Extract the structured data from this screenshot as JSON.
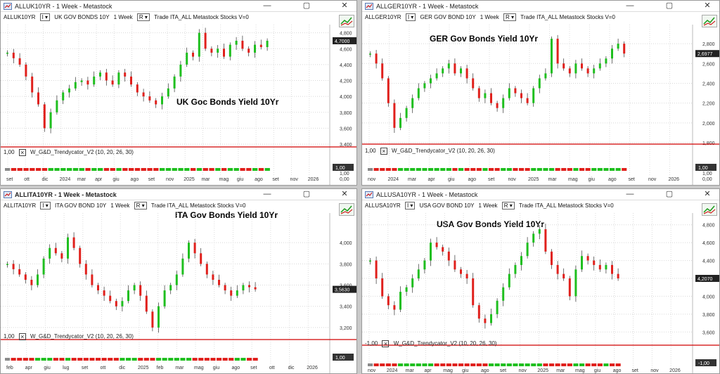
{
  "windows": [
    {
      "id": "uk",
      "title": "ALLUK10YR - 1 Week - Metastock",
      "active": false,
      "symbol": "ALLUK10YR",
      "name": "UK GOV BONDS 10Y",
      "period": "1 Week",
      "r": "R",
      "info": "Trade  ITA_ALL  Metastock  Stocks  V=0",
      "annotation": "UK Goc Bonds Yield 10Yr",
      "price_label": "4,7000",
      "y_ticks": [
        "4,800",
        "4,600",
        "4,400",
        "4,200",
        "4,000",
        "3,800",
        "3,600",
        "3,400"
      ],
      "indicator_name": "W_G&D_Trendycator_V2  (10, 20, 26, 30)",
      "indicator_left": "1,00",
      "indicator_tag": "1,00",
      "indicator_ticks": [
        "1,00",
        "0,00"
      ],
      "x_labels": [
        "set",
        "ott",
        "dic",
        "2024",
        "mar",
        "apr",
        "giu",
        "ago",
        "set",
        "nov",
        "2025",
        "mar",
        "mag",
        "giu",
        "ago",
        "set",
        "nov",
        "2026"
      ],
      "chart_data": {
        "type": "candlestick",
        "series": [
          {
            "values": [
              4.55,
              4.48,
              4.4,
              4.25,
              4.05,
              3.9,
              3.6,
              3.8,
              3.95,
              4.05,
              4.1,
              4.18,
              4.2,
              4.15,
              4.25,
              4.3,
              4.2,
              4.15,
              4.3,
              4.25,
              4.15,
              4.05,
              4.0,
              3.95,
              3.9,
              4.0,
              4.1,
              4.25,
              4.4,
              4.55,
              4.5,
              4.8,
              4.6,
              4.55,
              4.6,
              4.5,
              4.65,
              4.7,
              4.6,
              4.55,
              4.65,
              4.62,
              4.7
            ]
          }
        ],
        "ylim": [
          3.4,
          4.85
        ]
      }
    },
    {
      "id": "ger",
      "title": "ALLGER10YR - 1 Week - Metastock",
      "active": false,
      "symbol": "ALLGER10YR",
      "name": "GER GOV BOND 10Y",
      "period": "1 Week",
      "r": "R",
      "info": "Trade  ITA_ALL  Metastock  Stocks  V=0",
      "annotation": "GER Gov Bonds Yield 10Yr",
      "price_label": "2,6977",
      "y_ticks": [
        "2,800",
        "2,600",
        "2,400",
        "2,200",
        "2,000",
        "1,800"
      ],
      "indicator_name": "W_G&D_Trendycator_V2  (10, 20, 26, 30)",
      "indicator_left": "1,00",
      "indicator_tag": "1,00",
      "indicator_ticks": [
        "1,00",
        "0,00"
      ],
      "x_labels": [
        "nov",
        "2024",
        "mar",
        "apr",
        "giu",
        "ago",
        "set",
        "nov",
        "2025",
        "mar",
        "mag",
        "giu",
        "ago",
        "set",
        "nov",
        "2026"
      ],
      "chart_data": {
        "type": "candlestick",
        "series": [
          {
            "values": [
              2.7,
              2.6,
              2.45,
              2.2,
              1.95,
              2.05,
              2.15,
              2.25,
              2.35,
              2.4,
              2.45,
              2.5,
              2.55,
              2.6,
              2.5,
              2.55,
              2.45,
              2.35,
              2.25,
              2.3,
              2.2,
              2.15,
              2.25,
              2.35,
              2.3,
              2.25,
              2.2,
              2.35,
              2.45,
              2.5,
              2.85,
              2.6,
              2.55,
              2.5,
              2.6,
              2.55,
              2.5,
              2.55,
              2.6,
              2.65,
              2.75,
              2.8,
              2.7
            ]
          }
        ],
        "ylim": [
          1.8,
          2.95
        ]
      }
    },
    {
      "id": "ita",
      "title": "ALLITA10YR - 1 Week - Metastock",
      "active": true,
      "symbol": "ALLITA10YR",
      "name": "ITA GOV BOND 10Y",
      "period": "1 Week",
      "r": "R",
      "info": "Trade  ITA_ALL  Metastock  Stocks  V=0",
      "annotation": "ITA Gov Bonds Yield 10Yr",
      "price_label": "3,5630",
      "y_ticks": [
        "4,000",
        "3,800",
        "3,600",
        "3,400",
        "3,200"
      ],
      "indicator_name": "W_G&D_Trendycator_V2  (10, 20, 26, 30)",
      "indicator_left": "1,00",
      "indicator_tag": "1,00",
      "indicator_ticks": [],
      "x_labels": [
        "feb",
        "apr",
        "giu",
        "lug",
        "set",
        "ott",
        "dic",
        "2025",
        "feb",
        "mar",
        "mag",
        "giu",
        "ago",
        "set",
        "ott",
        "dic",
        "2026"
      ],
      "chart_data": {
        "type": "candlestick",
        "series": [
          {
            "values": [
              3.8,
              3.75,
              3.7,
              3.65,
              3.6,
              3.7,
              3.85,
              3.95,
              3.9,
              3.85,
              4.05,
              3.95,
              3.8,
              3.7,
              3.6,
              3.55,
              3.5,
              3.45,
              3.4,
              3.45,
              3.55,
              3.6,
              3.5,
              3.35,
              3.2,
              3.4,
              3.55,
              3.6,
              3.7,
              3.85,
              4.0,
              3.9,
              3.8,
              3.7,
              3.65,
              3.6,
              3.55,
              3.5,
              3.55,
              3.6,
              3.58,
              3.56
            ]
          }
        ],
        "ylim": [
          3.1,
          4.2
        ]
      }
    },
    {
      "id": "usa",
      "title": "ALLUSA10YR - 1 Week - Metastock",
      "active": false,
      "symbol": "ALLUSA10YR",
      "name": "USA GOV BOND 10Y",
      "period": "1 Week",
      "r": "R",
      "info": "Trade  ITA_ALL  Metastock  Stocks  V=0",
      "annotation": "USA Gov Bonds Yield 10Yr",
      "price_label": "4,2070",
      "y_ticks": [
        "4,800",
        "4,600",
        "4,400",
        "4,200",
        "4,000",
        "3,800",
        "3,600"
      ],
      "indicator_name": "W_G&D_Trendycator_V2  (10, 20, 26, 30)",
      "indicator_left": "-1,00",
      "indicator_tag": "-1,00",
      "indicator_ticks": [],
      "x_labels": [
        "nov",
        "2024",
        "mar",
        "apr",
        "mag",
        "giu",
        "ago",
        "set",
        "nov",
        "2025",
        "mar",
        "mag",
        "giu",
        "ago",
        "set",
        "nov",
        "2026"
      ],
      "chart_data": {
        "type": "candlestick",
        "series": [
          {
            "values": [
              4.4,
              4.2,
              4.0,
              3.9,
              3.85,
              4.05,
              4.1,
              4.2,
              4.3,
              4.4,
              4.6,
              4.55,
              4.5,
              4.4,
              4.3,
              4.25,
              4.2,
              3.9,
              3.75,
              3.7,
              3.8,
              3.95,
              4.1,
              4.25,
              4.35,
              4.45,
              4.6,
              4.7,
              4.75,
              4.5,
              4.35,
              4.25,
              4.2,
              4.0,
              4.3,
              4.45,
              4.4,
              4.35,
              4.3,
              4.35,
              4.25,
              4.2
            ]
          }
        ],
        "ylim": [
          3.5,
          4.9
        ]
      }
    }
  ],
  "colors": {
    "up": "#1fbf1f",
    "down": "#e0201c",
    "neutral": "#8a8a8a",
    "indicator_line": "#d00000",
    "tag_bg": "#333333",
    "price_tag": "#222222"
  },
  "icons": {
    "window_icon": "chart-window-icon",
    "minimize": "minimize-icon",
    "restore": "restore-icon",
    "close": "close-icon",
    "trend": "trend-tool-icon"
  }
}
